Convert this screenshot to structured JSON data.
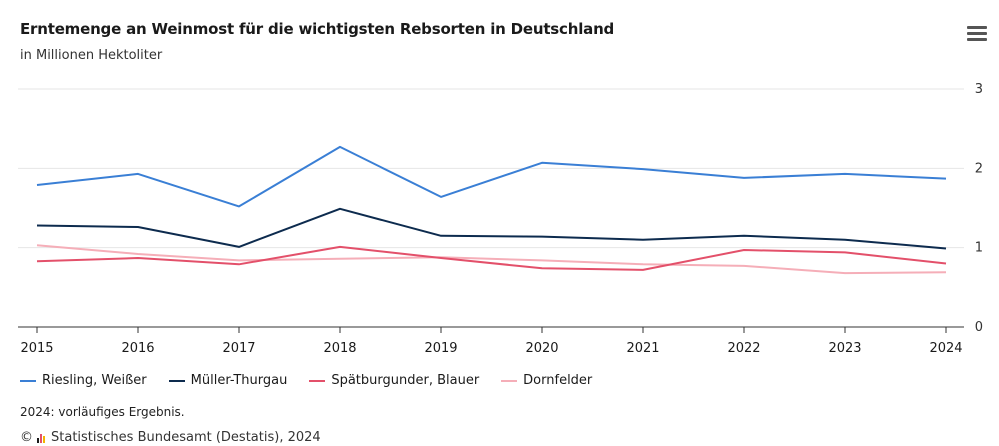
{
  "header": {
    "title": "Erntemenge an Weinmost für die wichtigsten Rebsorten in Deutschland",
    "subtitle": "in Millionen Hektoliter"
  },
  "menu": {
    "icon": "hamburger-menu-icon"
  },
  "chart_data": {
    "type": "line",
    "x": [
      "2015",
      "2016",
      "2017",
      "2018",
      "2019",
      "2020",
      "2021",
      "2022",
      "2023",
      "2024"
    ],
    "ylim": [
      0,
      3
    ],
    "yticks": [
      "0",
      "1",
      "2",
      "3"
    ],
    "grid": true,
    "legend_position": "bottom-left",
    "series": [
      {
        "name": "Riesling, Weißer",
        "color": "#3a7fd5",
        "values": [
          1.79,
          1.93,
          1.52,
          2.27,
          1.64,
          2.07,
          1.99,
          1.88,
          1.93,
          1.87
        ]
      },
      {
        "name": "Müller-Thurgau",
        "color": "#0d2b4e",
        "values": [
          1.28,
          1.26,
          1.01,
          1.49,
          1.15,
          1.14,
          1.1,
          1.15,
          1.1,
          0.99
        ]
      },
      {
        "name": "Spätburgunder, Blauer",
        "color": "#e3506a",
        "values": [
          0.83,
          0.87,
          0.79,
          1.01,
          0.87,
          0.74,
          0.72,
          0.97,
          0.94,
          0.8
        ]
      },
      {
        "name": "Dornfelder",
        "color": "#f5aeb8",
        "values": [
          1.03,
          0.92,
          0.84,
          0.86,
          0.88,
          0.84,
          0.79,
          0.77,
          0.68,
          0.69
        ]
      }
    ]
  },
  "footer": {
    "note": "2024: vorläufiges Ergebnis.",
    "copyright": "©",
    "source": "Statistisches Bundesamt (Destatis), 2024"
  }
}
